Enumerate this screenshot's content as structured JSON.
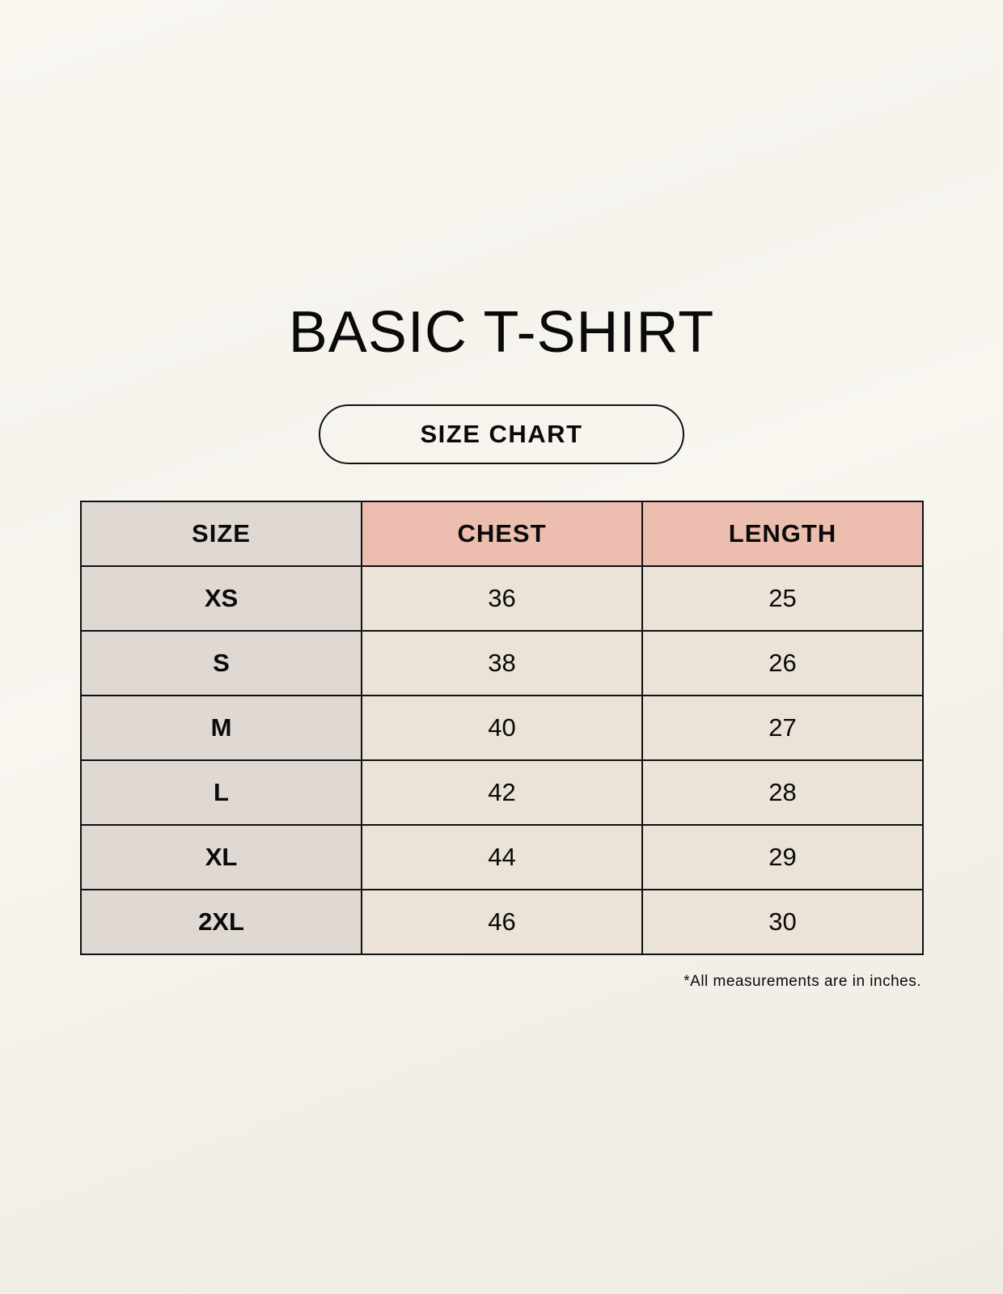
{
  "title": "BASIC T-SHIRT",
  "subtitle": "SIZE CHART",
  "table": {
    "headers": [
      "SIZE",
      "CHEST",
      "LENGTH"
    ],
    "rows": [
      [
        "XS",
        "36",
        "25"
      ],
      [
        "S",
        "38",
        "26"
      ],
      [
        "M",
        "40",
        "27"
      ],
      [
        "L",
        "42",
        "28"
      ],
      [
        "XL",
        "44",
        "29"
      ],
      [
        "2XL",
        "46",
        "30"
      ]
    ]
  },
  "footnote": "*All measurements are in inches.",
  "colors": {
    "size_column": "#e0d9d3",
    "header_accent": "#edbdaf",
    "cell": "#ebe2d8",
    "background": "#f8f5ef"
  }
}
